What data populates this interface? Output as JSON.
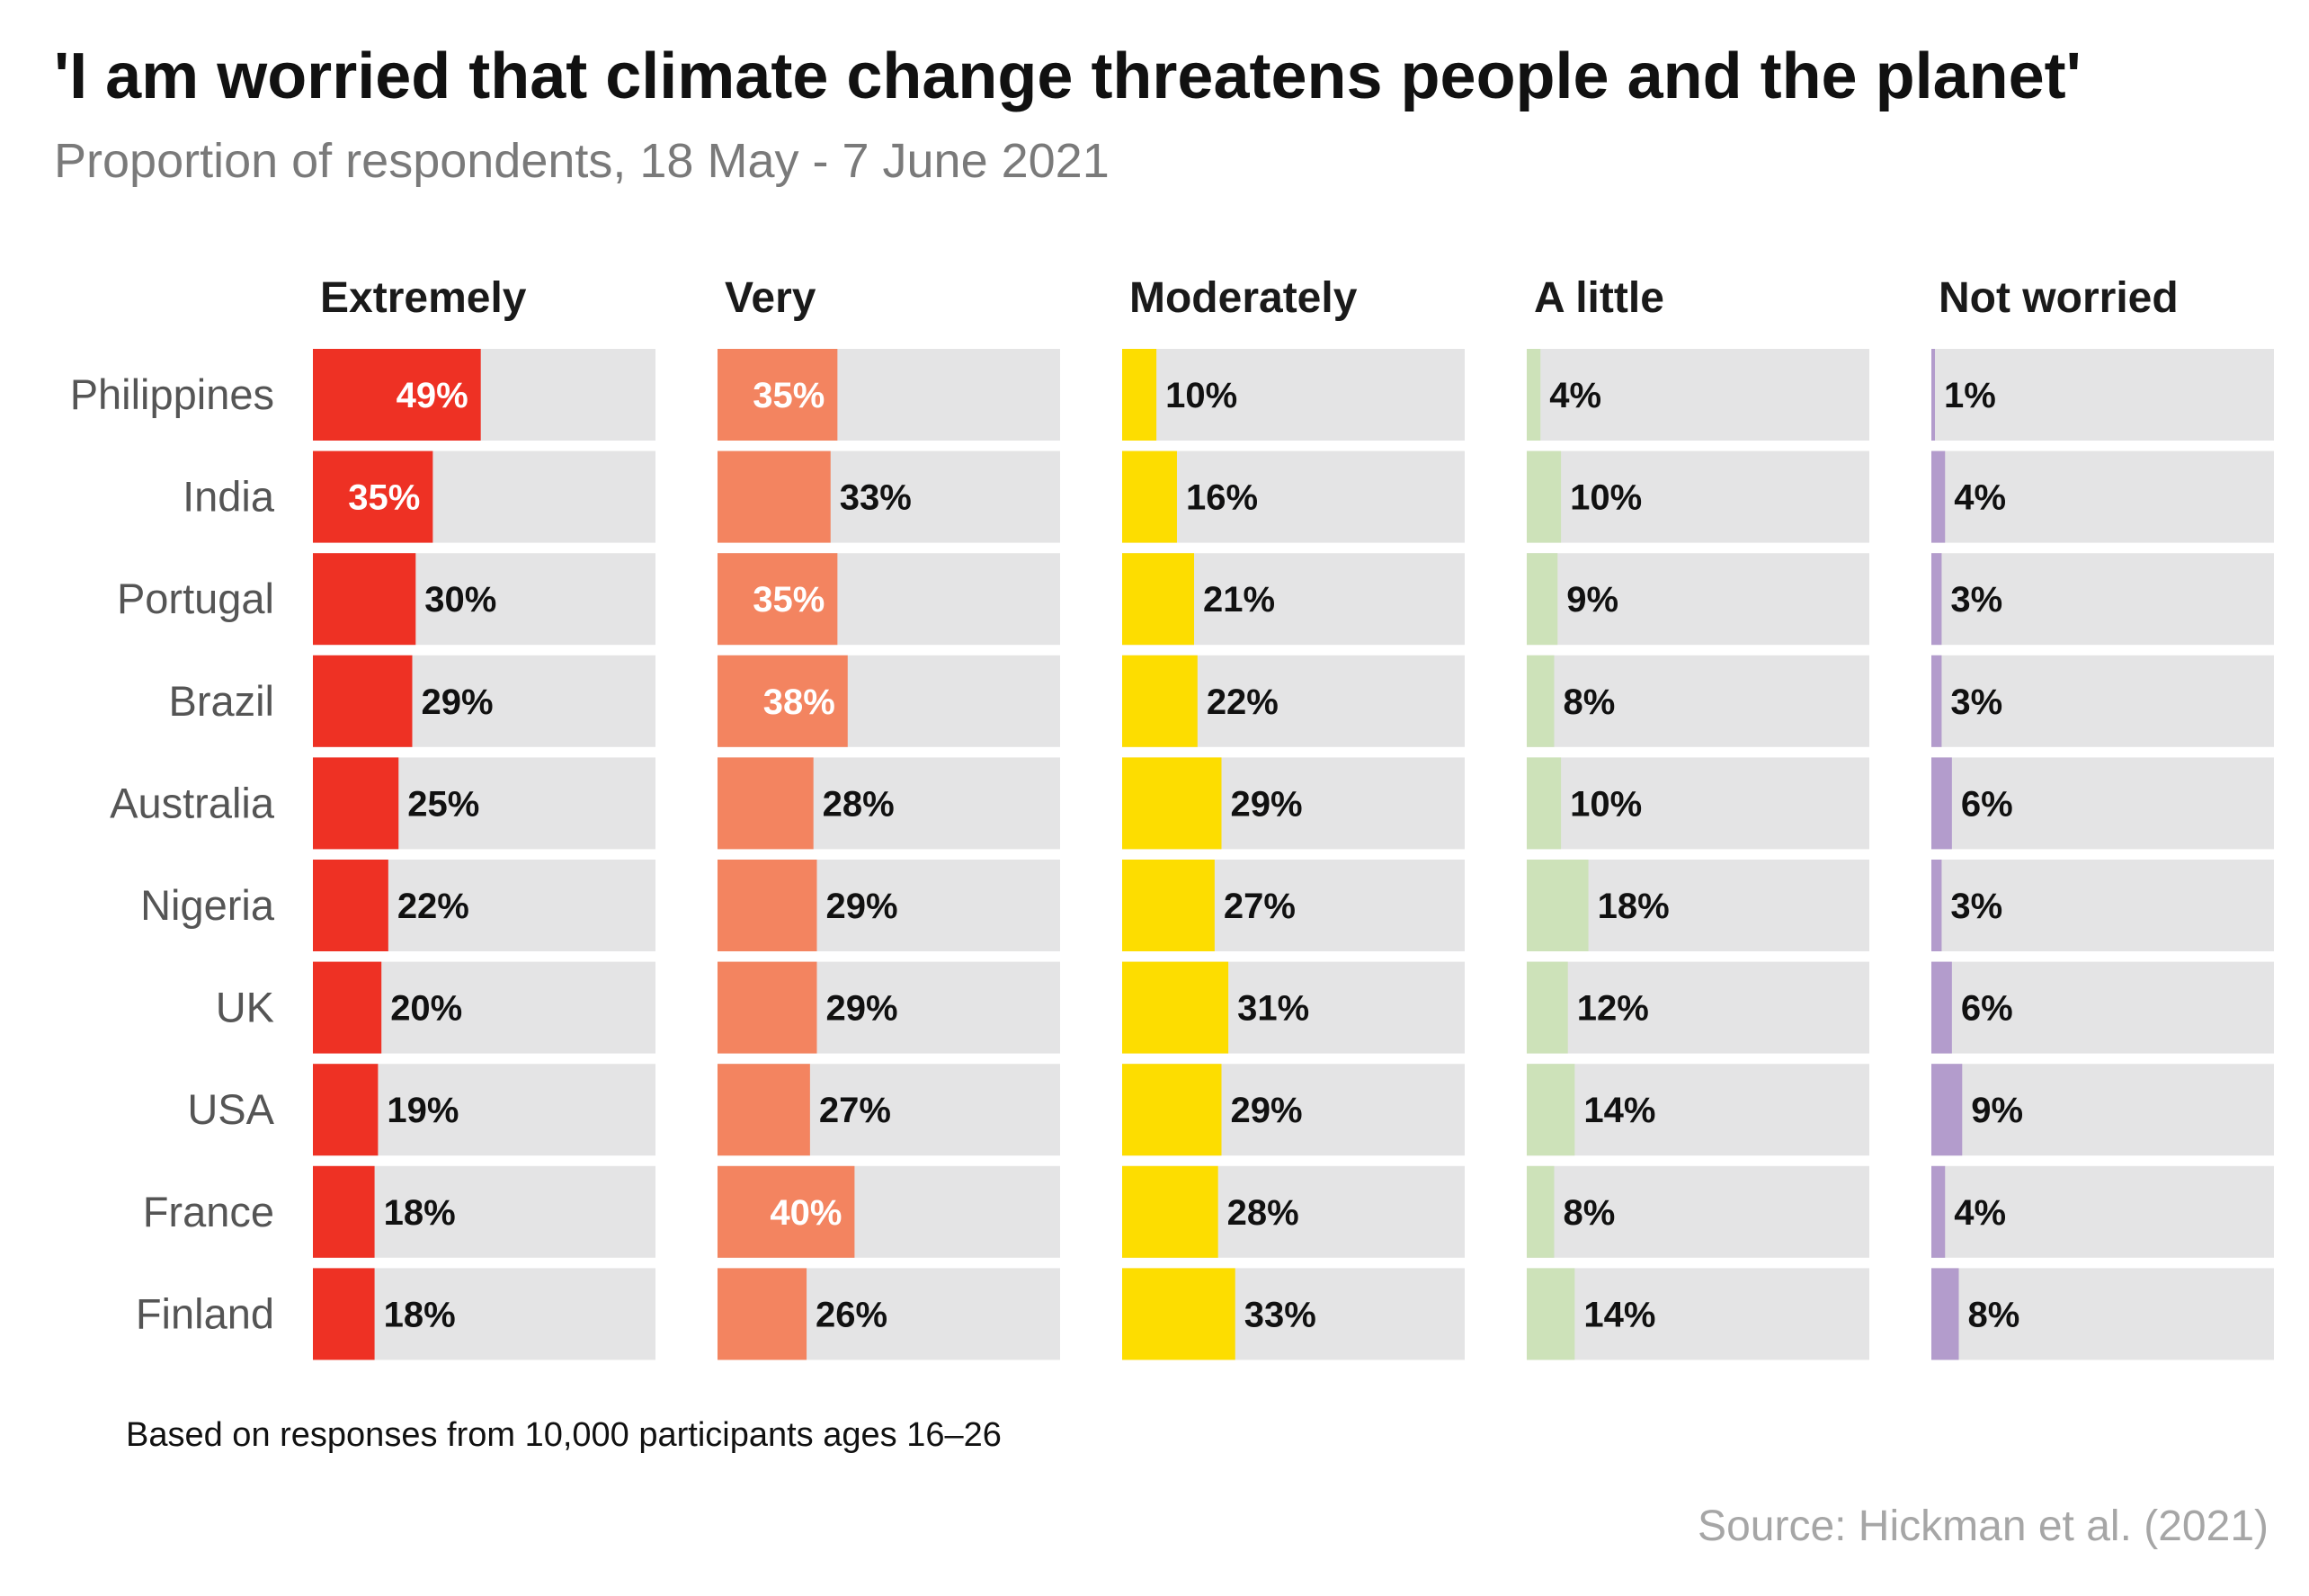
{
  "title": "'I am worried that climate change threatens people and the planet'",
  "subtitle": "Proportion of respondents, 18 May - 7 June 2021",
  "note": "Based on responses from 10,000 participants ages 16–26",
  "source": "Source: Hickman et al. (2021)",
  "chart_data": {
    "type": "bar",
    "orientation": "horizontal",
    "layout": "small-multiples",
    "xlim": [
      0,
      100
    ],
    "unit": "%",
    "categories": [
      "Philippines",
      "India",
      "Portugal",
      "Brazil",
      "Australia",
      "Nigeria",
      "UK",
      "USA",
      "France",
      "Finland"
    ],
    "series": [
      {
        "name": "Extremely",
        "color": "#ee3124",
        "values": [
          49,
          35,
          30,
          29,
          25,
          22,
          20,
          19,
          18,
          18
        ]
      },
      {
        "name": "Very",
        "color": "#f38460",
        "values": [
          35,
          33,
          35,
          38,
          28,
          29,
          29,
          27,
          40,
          26
        ]
      },
      {
        "name": "Moderately",
        "color": "#fddd00",
        "values": [
          10,
          16,
          21,
          22,
          29,
          27,
          31,
          29,
          28,
          33
        ]
      },
      {
        "name": "A little",
        "color": "#cde2b9",
        "values": [
          4,
          10,
          9,
          8,
          10,
          18,
          12,
          14,
          8,
          14
        ]
      },
      {
        "name": "Not worried",
        "color": "#b39ccc",
        "values": [
          1,
          4,
          3,
          3,
          6,
          3,
          6,
          9,
          4,
          8
        ]
      }
    ],
    "track_color": "#e4e4e5",
    "inside_label_color": "#ffffff",
    "outside_label_color": "#111111"
  }
}
